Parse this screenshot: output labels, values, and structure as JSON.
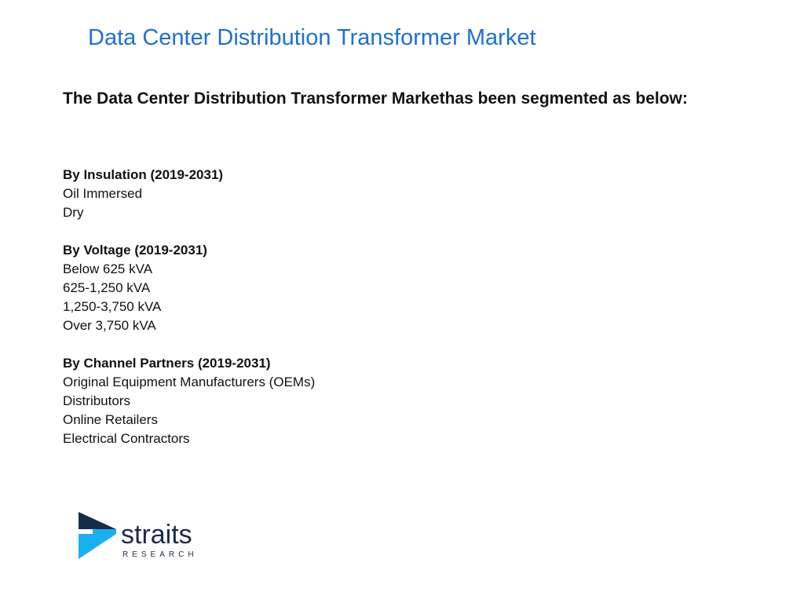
{
  "header": {
    "title": "Data Center Distribution Transformer Market"
  },
  "subtitle": "The Data Center Distribution Transformer Markethas been segmented as below:",
  "segments": [
    {
      "title": "By Insulation (2019-2031)",
      "items": [
        "Oil Immersed",
        "Dry"
      ]
    },
    {
      "title": "By Voltage (2019-2031)",
      "items": [
        "Below 625 kVA",
        "625-1,250 kVA",
        "1,250-3,750 kVA",
        "Over 3,750 kVA"
      ]
    },
    {
      "title": "By Channel Partners (2019-2031)",
      "items": [
        "Original Equipment Manufacturers (OEMs)",
        "Distributors",
        "Online Retailers",
        "Electrical Contractors"
      ]
    }
  ],
  "logo": {
    "name": "straits",
    "tagline": "RESEARCH"
  }
}
